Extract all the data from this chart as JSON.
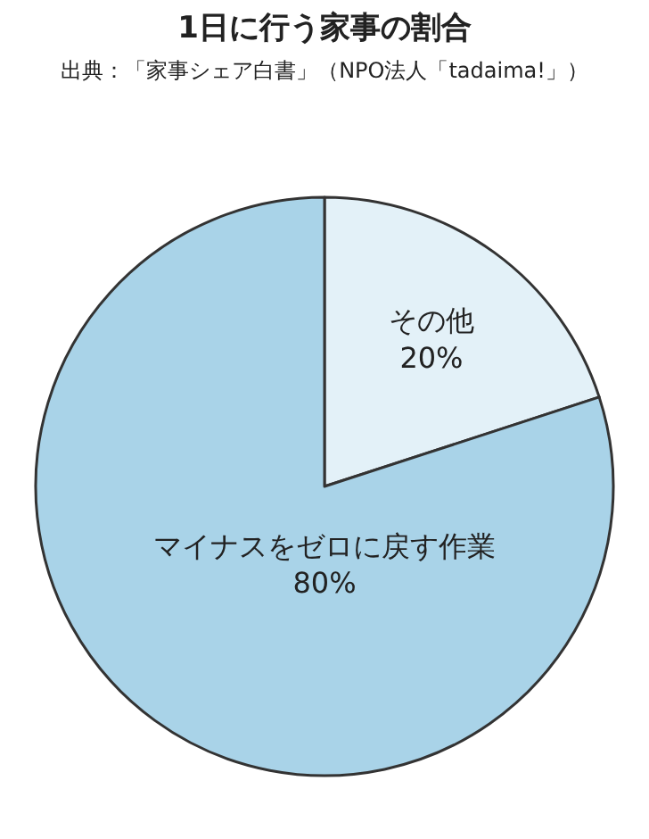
{
  "chart_data": {
    "type": "pie",
    "title": "1日に行う家事の割合",
    "subtitle": "出典：「家事シェア白書」（NPO法人「tadaima!」）",
    "categories": [
      "その他",
      "マイナスをゼロに戻す作業"
    ],
    "values": [
      20,
      80
    ],
    "value_labels": [
      "20%",
      "80%"
    ],
    "colors": [
      "#e3f1f8",
      "#a9d3e8"
    ],
    "legend": false
  }
}
